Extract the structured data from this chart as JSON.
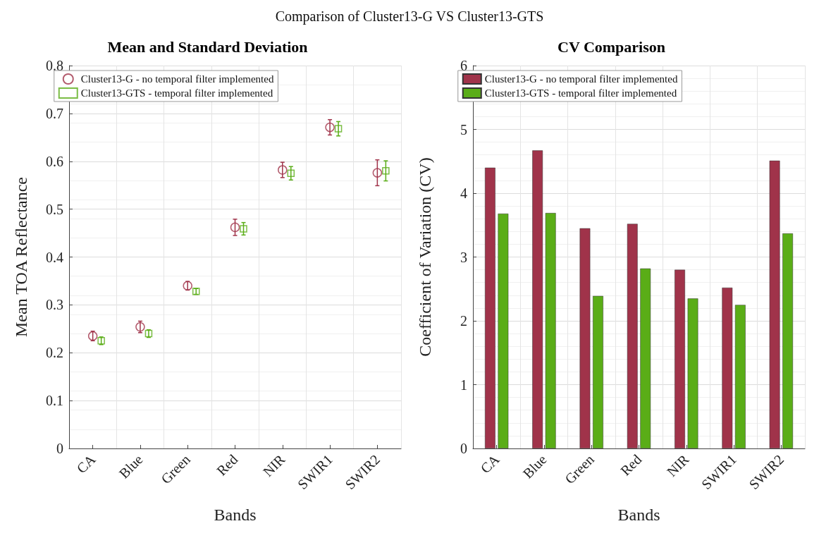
{
  "chart_data": [
    {
      "type": "scatter",
      "title": "Mean and Standard Deviation",
      "xlabel": "Bands",
      "ylabel": "Mean TOA Reflectance",
      "annotations": [
        "Comparison of Cluster13-G VS Cluster13-GTS"
      ],
      "categories": [
        "CA",
        "Blue",
        "Green",
        "Red",
        "NIR",
        "SWIR1",
        "SWIR2"
      ],
      "series": [
        {
          "name": "Cluster13-G - no temporal filter implemented",
          "color": "#a0334a",
          "marker": "circle",
          "values": [
            0.235,
            0.254,
            0.34,
            0.462,
            0.582,
            0.671,
            0.576
          ],
          "errors": [
            0.01,
            0.012,
            0.009,
            0.017,
            0.016,
            0.016,
            0.027
          ]
        },
        {
          "name": "Cluster13-GTS - temporal filter implemented",
          "color": "#5aad17",
          "marker": "square",
          "values": [
            0.225,
            0.24,
            0.328,
            0.459,
            0.575,
            0.668,
            0.58
          ],
          "errors": [
            0.008,
            0.008,
            0.006,
            0.013,
            0.014,
            0.015,
            0.021
          ]
        }
      ],
      "ylim": [
        0,
        0.8
      ],
      "yticks": [
        0,
        0.1,
        0.2,
        0.3,
        0.4,
        0.5,
        0.6,
        0.7,
        0.8
      ],
      "grid": true,
      "legend": "top left"
    },
    {
      "type": "bar",
      "title": "CV Comparison",
      "xlabel": "Bands",
      "ylabel": "Coefficient of Variation (CV)",
      "categories": [
        "CA",
        "Blue",
        "Green",
        "Red",
        "NIR",
        "SWIR1",
        "SWIR2"
      ],
      "series": [
        {
          "name": "Cluster13-G - no temporal filter implemented",
          "color": "#a0334a",
          "values": [
            4.4,
            4.67,
            3.45,
            3.52,
            2.8,
            2.52,
            4.51
          ]
        },
        {
          "name": "Cluster13-GTS - temporal filter implemented",
          "color": "#5aad17",
          "values": [
            3.68,
            3.69,
            2.39,
            2.82,
            2.35,
            2.25,
            3.37
          ]
        }
      ],
      "ylim": [
        0,
        6
      ],
      "yticks": [
        0,
        1,
        2,
        3,
        4,
        5,
        6
      ],
      "grid": true,
      "legend": "top left"
    }
  ]
}
